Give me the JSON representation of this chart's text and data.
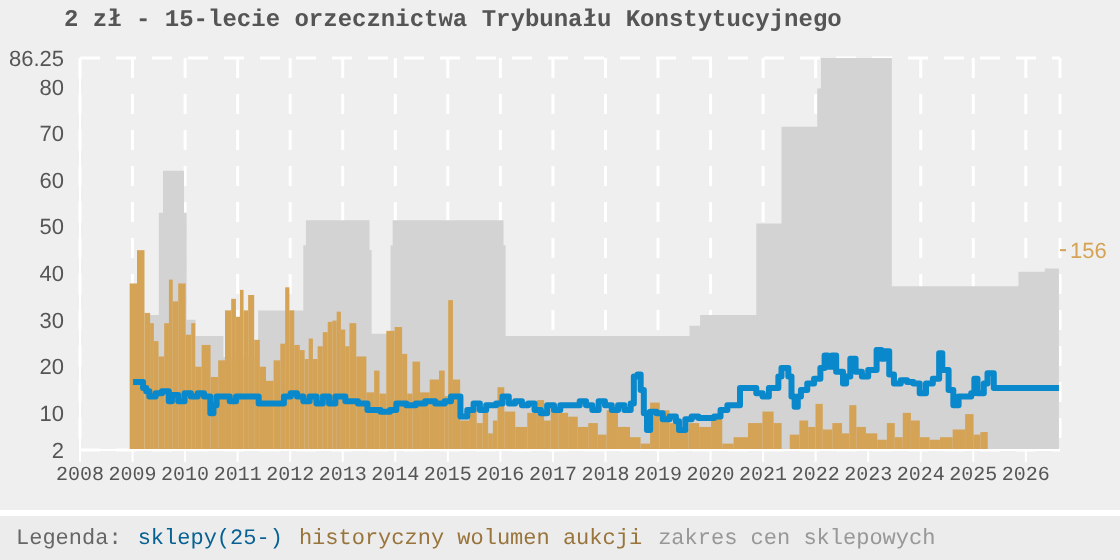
{
  "chart_data": {
    "type": "step",
    "title": "2 zł - 15-lecie orzecznictwa Trybunału Konstytucyjnego",
    "legend_title": "Legenda:",
    "legend": "bottom",
    "grid": true,
    "xlim": [
      2008,
      2026.65
    ],
    "xticks": [
      2008,
      2009,
      2010,
      2011,
      2012,
      2013,
      2014,
      2015,
      2016,
      2017,
      2018,
      2019,
      2020,
      2021,
      2022,
      2023,
      2024,
      2025,
      2026
    ],
    "ylim": [
      2,
      86.25
    ],
    "yticks": [
      2,
      10,
      20,
      30,
      40,
      50,
      60,
      70,
      80,
      86.25
    ],
    "y2lim": [
      0,
      306
    ],
    "y2ticks": [
      156
    ],
    "series": [
      {
        "name": "sklepy(25-)",
        "color": "#0a88cc",
        "x": [
          2009.01,
          2009.14,
          2009.2,
          2009.26,
          2009.32,
          2009.44,
          2009.56,
          2009.69,
          2009.75,
          2009.87,
          2009.99,
          2010.11,
          2010.24,
          2010.36,
          2010.48,
          2010.54,
          2010.6,
          2010.85,
          2010.97,
          2011.4,
          2011.88,
          2012.01,
          2012.13,
          2012.25,
          2012.37,
          2012.5,
          2012.62,
          2012.74,
          2012.86,
          2013.05,
          2013.29,
          2013.47,
          2013.72,
          2013.9,
          2014.02,
          2014.21,
          2014.39,
          2014.57,
          2014.76,
          2014.94,
          2015.06,
          2015.24,
          2015.37,
          2015.49,
          2015.61,
          2015.73,
          2015.92,
          2016.04,
          2016.16,
          2016.28,
          2016.41,
          2016.53,
          2016.65,
          2016.77,
          2016.89,
          2017.02,
          2017.14,
          2017.32,
          2017.51,
          2017.63,
          2017.75,
          2017.87,
          2017.99,
          2018.12,
          2018.24,
          2018.36,
          2018.48,
          2018.54,
          2018.61,
          2018.67,
          2018.73,
          2018.79,
          2018.85,
          2018.97,
          2019.09,
          2019.22,
          2019.34,
          2019.4,
          2019.52,
          2019.64,
          2019.77,
          2020.07,
          2020.19,
          2020.32,
          2020.56,
          2020.87,
          2020.99,
          2021.11,
          2021.29,
          2021.35,
          2021.48,
          2021.54,
          2021.6,
          2021.66,
          2021.72,
          2021.84,
          2021.97,
          2022.09,
          2022.17,
          2022.23,
          2022.31,
          2022.39,
          2022.52,
          2022.58,
          2022.66,
          2022.76,
          2022.88,
          2023.0,
          2023.16,
          2023.25,
          2023.31,
          2023.4,
          2023.49,
          2023.62,
          2023.74,
          2023.86,
          2023.98,
          2024.1,
          2024.23,
          2024.35,
          2024.41,
          2024.53,
          2024.62,
          2024.72,
          2024.96,
          2025.02,
          2025.08,
          2025.2,
          2025.27,
          2025.39,
          2026.63
        ],
        "values": [
          16.6,
          16.6,
          15.3,
          14.6,
          13.5,
          14.2,
          14.6,
          12.5,
          13.8,
          12.5,
          14.2,
          13.5,
          14.2,
          13.5,
          9.9,
          11.6,
          13.5,
          12.5,
          13.5,
          12,
          13.5,
          14.2,
          13.5,
          12.5,
          13.5,
          12,
          13.5,
          12,
          13.5,
          12.5,
          12,
          10.6,
          10.2,
          10.6,
          12,
          11.6,
          12,
          12.5,
          12,
          12.5,
          13.5,
          9.2,
          10.6,
          12,
          10.6,
          11.6,
          12,
          13.5,
          12,
          12.5,
          11.6,
          12,
          10.6,
          9.9,
          11.6,
          10.6,
          11.6,
          11.6,
          12.5,
          11.6,
          10.6,
          12.5,
          11.6,
          10.6,
          11.6,
          10.6,
          12,
          17.8,
          18.2,
          14.9,
          9.9,
          6.3,
          10.2,
          9.9,
          8.6,
          9.2,
          8.2,
          6.3,
          8.6,
          9.2,
          8.9,
          9.2,
          10.6,
          11.6,
          15.3,
          14.2,
          13.5,
          15.3,
          17.8,
          19.6,
          17.8,
          13.5,
          11.3,
          13.5,
          14.9,
          16.3,
          17.3,
          19.6,
          22.3,
          19.9,
          22.3,
          18.8,
          16.3,
          17.8,
          21.6,
          18.8,
          17.8,
          19.2,
          23.5,
          21.6,
          23.2,
          18.2,
          16.3,
          17,
          16.6,
          16.3,
          14.2,
          16.3,
          17.3,
          22.8,
          19.2,
          14.9,
          11.6,
          13.5,
          14.2,
          17.3,
          14.2,
          16.3,
          18.5,
          15.3,
          15.3
        ]
      },
      {
        "type": "bar",
        "name": "historyczny wolumen aukcji",
        "color": "#d4a355",
        "axis": "y2",
        "x": [
          2009.015,
          2009.155,
          2009.3,
          2009.37,
          2009.44,
          2009.55,
          2009.655,
          2009.73,
          2009.8,
          2009.94,
          2010.08,
          2010.155,
          2010.23,
          2010.4,
          2010.57,
          2010.69,
          2010.83,
          2010.925,
          2011.01,
          2011.08,
          2011.145,
          2011.255,
          2011.375,
          2011.47,
          2011.61,
          2011.76,
          2011.865,
          2011.945,
          2012.025,
          2012.13,
          2012.235,
          2012.315,
          2012.39,
          2012.475,
          2012.57,
          2012.67,
          2012.76,
          2012.845,
          2012.925,
          2013.005,
          2013.09,
          2013.165,
          2013.35,
          2013.55,
          2013.645,
          2013.755,
          2013.905,
          2014.07,
          2014.19,
          2014.265,
          2014.39,
          2014.555,
          2014.755,
          2014.91,
          2014.97,
          2015.045,
          2015.15,
          2015.32,
          2015.49,
          2015.61,
          2015.72,
          2015.815,
          2015.9,
          2015.99,
          2016.16,
          2016.405,
          2016.62,
          2016.77,
          2016.895,
          2017.02,
          2017.2,
          2017.38,
          2017.565,
          2017.78,
          2017.93,
          2018.115,
          2018.36,
          2018.575,
          2018.76,
          2018.94,
          2019.125,
          2019.31,
          2019.49,
          2019.675,
          2019.89,
          2020.13,
          2020.315,
          2020.56,
          2020.865,
          2021.11,
          2021.29,
          2021.415,
          2021.6,
          2021.78,
          2021.935,
          2022.06,
          2022.21,
          2022.425,
          2022.58,
          2022.7,
          2022.85,
          2023.065,
          2023.28,
          2023.43,
          2023.58,
          2023.735,
          2023.89,
          2024.075,
          2024.26,
          2024.47,
          2024.745,
          2024.945,
          2025.065,
          2025.205
        ],
        "values": [
          130,
          156,
          107,
          99,
          85,
          73,
          99,
          133,
          116,
          130,
          90,
          99,
          65,
          82,
          57,
          70,
          109,
          118,
          104,
          125,
          109,
          121,
          86,
          65,
          54,
          70,
          83,
          127,
          109,
          82,
          78,
          71,
          87,
          71,
          81,
          92,
          100,
          101,
          108,
          94,
          81,
          99,
          73,
          45,
          62,
          44,
          93,
          96,
          75,
          44,
          69,
          45,
          55,
          62,
          42,
          117,
          55,
          23,
          31,
          21,
          31,
          13,
          23,
          49,
          30,
          18,
          29,
          39,
          23,
          34,
          29,
          26,
          18,
          21,
          12,
          31,
          18,
          10,
          5,
          37,
          31,
          21,
          16,
          21,
          18,
          26,
          5,
          10,
          21,
          30,
          21,
          null,
          12,
          23,
          18,
          36,
          16,
          21,
          13,
          35,
          18,
          13,
          8,
          21,
          10,
          29,
          23,
          10,
          8,
          10,
          16,
          28,
          12,
          14
        ]
      },
      {
        "type": "area",
        "name": "zakres cen sklepowych",
        "color": "#d3d3d3",
        "x": [
          2009.3,
          2009.5,
          2009.58,
          2009.98,
          2010.03,
          2010.2,
          2010.73,
          2011.39,
          2012.25,
          2012.3,
          2013.51,
          2013.55,
          2013.91,
          2013.95,
          2015.0,
          2016.06,
          2016.1,
          2019.6,
          2019.8,
          2020.87,
          2021.35,
          2021.48,
          2022.03,
          2022.1,
          2023.45,
          2025.3,
          2025.86,
          2026.36,
          2026.63
        ],
        "values": [
          31,
          53,
          62,
          53,
          30,
          26.5,
          22,
          32,
          46,
          51.4,
          45,
          27,
          46,
          51.4,
          51.4,
          46,
          26.5,
          28.7,
          31,
          50.7,
          71.5,
          71.5,
          79.7,
          86.25,
          37.2,
          37.2,
          40.3,
          41,
          41
        ]
      }
    ]
  }
}
